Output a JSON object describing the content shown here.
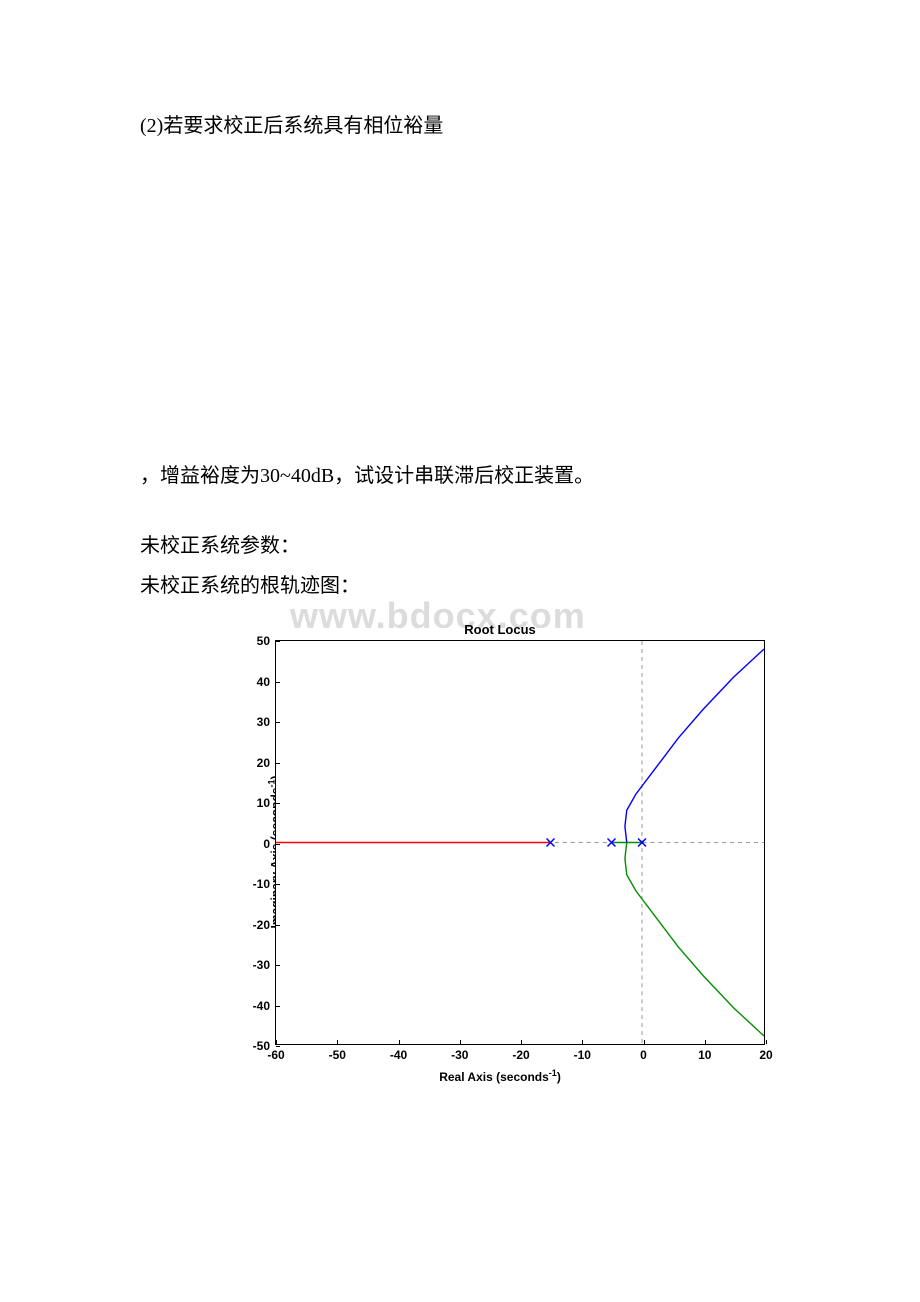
{
  "text": {
    "line1": "(2)若要求校正后系统具有相位裕量",
    "line2": "，增益裕度为30~40dB，试设计串联滞后校正装置。",
    "line3": "未校正系统参数：",
    "line4": "未校正系统的根轨迹图："
  },
  "watermark": "www.bdocx.com",
  "chart": {
    "type": "root-locus",
    "title": "Root Locus",
    "xlabel_prefix": "Real Axis (seconds",
    "xlabel_suffix": ")",
    "ylabel_prefix": "Imaginary Axis (seconds",
    "ylabel_suffix": ")",
    "exponent": "-1",
    "xlim": [
      -60,
      20
    ],
    "ylim": [
      -50,
      50
    ],
    "xticks": [
      -60,
      -50,
      -40,
      -30,
      -20,
      -10,
      0,
      10,
      20
    ],
    "yticks": [
      -50,
      -40,
      -30,
      -20,
      -10,
      0,
      10,
      20,
      30,
      40,
      50
    ],
    "background_color": "#ffffff",
    "axis_color": "#000000",
    "grid_dash_color": "#999999",
    "pole_marker": "x",
    "pole_color": "#0000ff",
    "poles_x": [
      0,
      -5,
      -15
    ],
    "zero_axis": {
      "vline_x": 0,
      "hline_y": 0
    },
    "branches": [
      {
        "name": "red-real-axis",
        "color": "#ff0000",
        "width": 1.4,
        "points": [
          [
            -60,
            0
          ],
          [
            -15,
            0
          ]
        ]
      },
      {
        "name": "green-real-segment",
        "color": "#009000",
        "width": 1.4,
        "points": [
          [
            -5,
            0
          ],
          [
            0,
            0
          ]
        ]
      },
      {
        "name": "blue-upper",
        "color": "#0000ff",
        "width": 1.4,
        "points": [
          [
            -2.5,
            0
          ],
          [
            -2.8,
            4
          ],
          [
            -2.5,
            8
          ],
          [
            -1,
            12
          ],
          [
            2,
            18
          ],
          [
            6,
            26
          ],
          [
            10,
            33
          ],
          [
            15,
            41
          ],
          [
            20,
            48
          ]
        ]
      },
      {
        "name": "green-lower",
        "color": "#009000",
        "width": 1.4,
        "points": [
          [
            -2.5,
            0
          ],
          [
            -2.8,
            -4
          ],
          [
            -2.5,
            -8
          ],
          [
            -1,
            -12
          ],
          [
            2,
            -18
          ],
          [
            6,
            -26
          ],
          [
            10,
            -33
          ],
          [
            15,
            -41
          ],
          [
            20,
            -48
          ]
        ]
      }
    ]
  }
}
